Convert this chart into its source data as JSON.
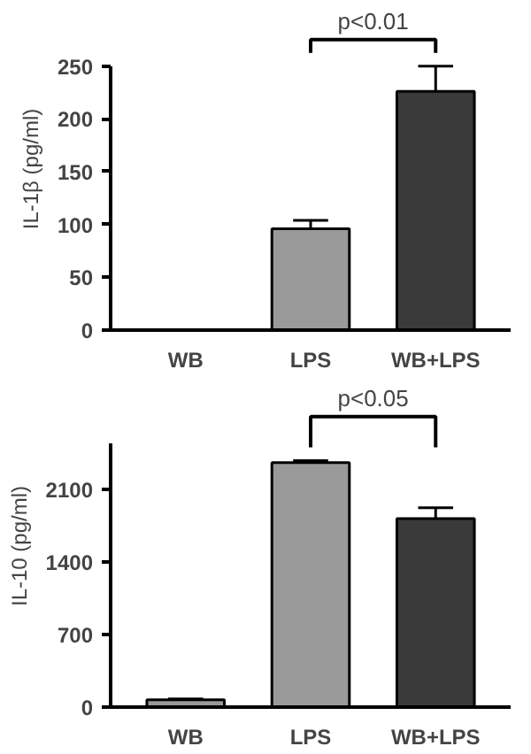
{
  "chart_data": [
    {
      "type": "bar",
      "categories": [
        "WB",
        "LPS",
        "WB+LPS"
      ],
      "ylabel": "IL-1β (pg/ml)",
      "values": [
        null,
        96,
        226
      ],
      "errors": [
        null,
        8,
        24
      ],
      "colors": [
        null,
        "#9a9a9a",
        "#3a3a3a"
      ],
      "ylim": [
        0,
        250
      ],
      "yticks": [
        0,
        50,
        100,
        150,
        200,
        250
      ],
      "grid": false,
      "annotations": [
        "p<0.01"
      ]
    },
    {
      "type": "bar",
      "categories": [
        "WB",
        "LPS",
        "WB+LPS"
      ],
      "ylabel": "IL-10 (pg/ml)",
      "values": [
        70,
        2360,
        1820
      ],
      "errors": [
        10,
        20,
        105
      ],
      "colors": [
        "#999999",
        "#9a9a9a",
        "#3a3a3a"
      ],
      "ylim": [
        0,
        2550
      ],
      "yticks": [
        0,
        700,
        1400,
        2100
      ],
      "grid": false,
      "annotations": [
        "p<0.05"
      ]
    }
  ]
}
